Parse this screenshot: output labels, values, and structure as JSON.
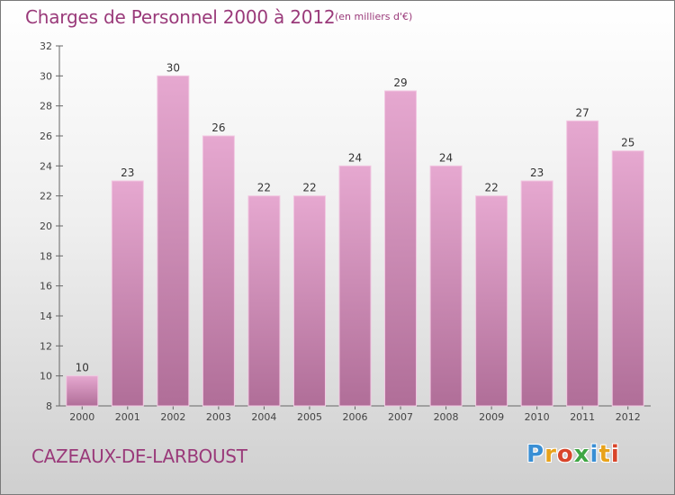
{
  "header": {
    "title": "Charges de Personnel 2000 à 2012",
    "unit": "(en milliers d'€)"
  },
  "footer": {
    "commune": "CAZEAUX-DE-LARBOUST",
    "logo_text": "Proxiti",
    "logo_colors": [
      "#3a8fd4",
      "#e8a21a",
      "#d8452a",
      "#3fa644",
      "#3a8fd4",
      "#e8a21a",
      "#d8452a"
    ]
  },
  "chart_data": {
    "type": "bar",
    "categories": [
      "2000",
      "2001",
      "2002",
      "2003",
      "2004",
      "2005",
      "2006",
      "2007",
      "2008",
      "2009",
      "2010",
      "2011",
      "2012"
    ],
    "values": [
      10,
      23,
      30,
      26,
      22,
      22,
      24,
      29,
      24,
      22,
      23,
      27,
      25
    ],
    "ylim": [
      8,
      32
    ],
    "yticks": [
      8,
      10,
      12,
      14,
      16,
      18,
      20,
      22,
      24,
      26,
      28,
      30,
      32
    ],
    "grid": false,
    "bar_color_top": "#e6a8d0",
    "bar_color_bottom": "#b06e98",
    "label_color": "#333333"
  }
}
